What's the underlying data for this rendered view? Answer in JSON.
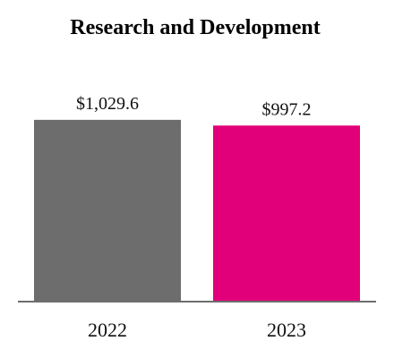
{
  "chart_data": {
    "type": "bar",
    "title": "Research and Development",
    "categories": [
      "2022",
      "2023"
    ],
    "values": [
      1029.6,
      997.2
    ],
    "value_labels": [
      "$1,029.6",
      "$997.2"
    ],
    "colors": [
      "#6d6d6d",
      "#e2007a"
    ],
    "ylim": [
      0,
      1100
    ],
    "grid": false,
    "legend": "none"
  }
}
